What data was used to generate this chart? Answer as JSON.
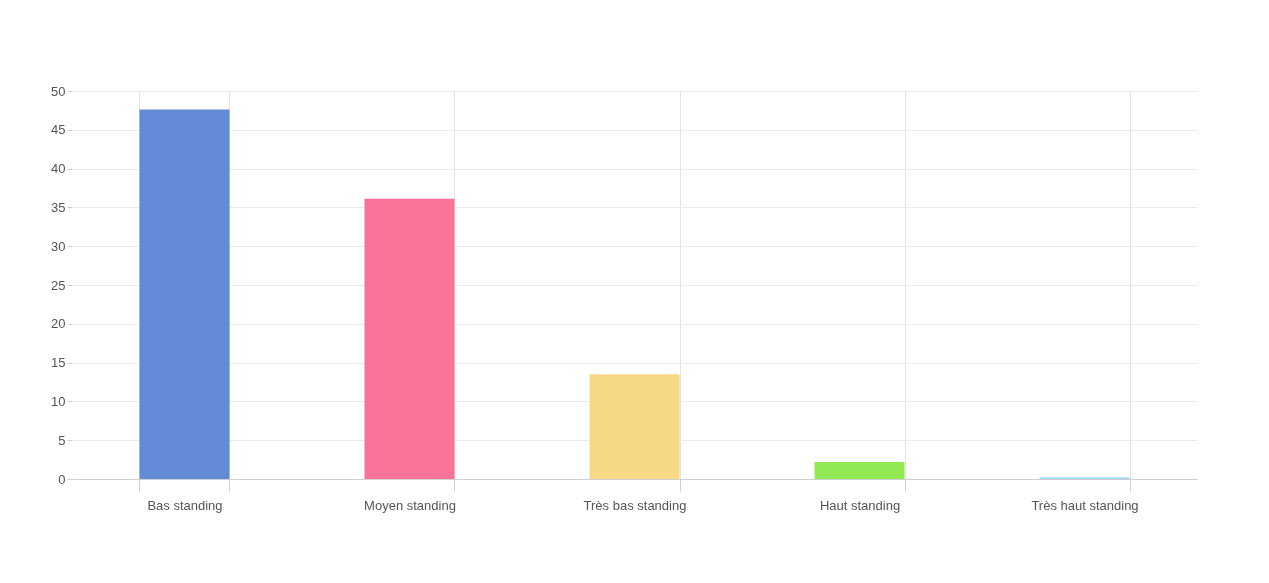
{
  "chart_data": {
    "type": "bar",
    "categories": [
      "Bas standing",
      "Moyen standing",
      "Très bas standing",
      "Haut standing",
      "Très haut standing"
    ],
    "values": [
      47.6,
      36.1,
      13.5,
      2.2,
      0.2
    ],
    "colors": [
      "#5b85d3",
      "#f96b93",
      "#f7d67e",
      "#8be84a",
      "#8cd3f5"
    ],
    "ylim": [
      0,
      50
    ],
    "yticks": [
      0,
      5,
      10,
      15,
      20,
      25,
      30,
      35,
      40,
      45,
      50
    ],
    "grid": true
  }
}
